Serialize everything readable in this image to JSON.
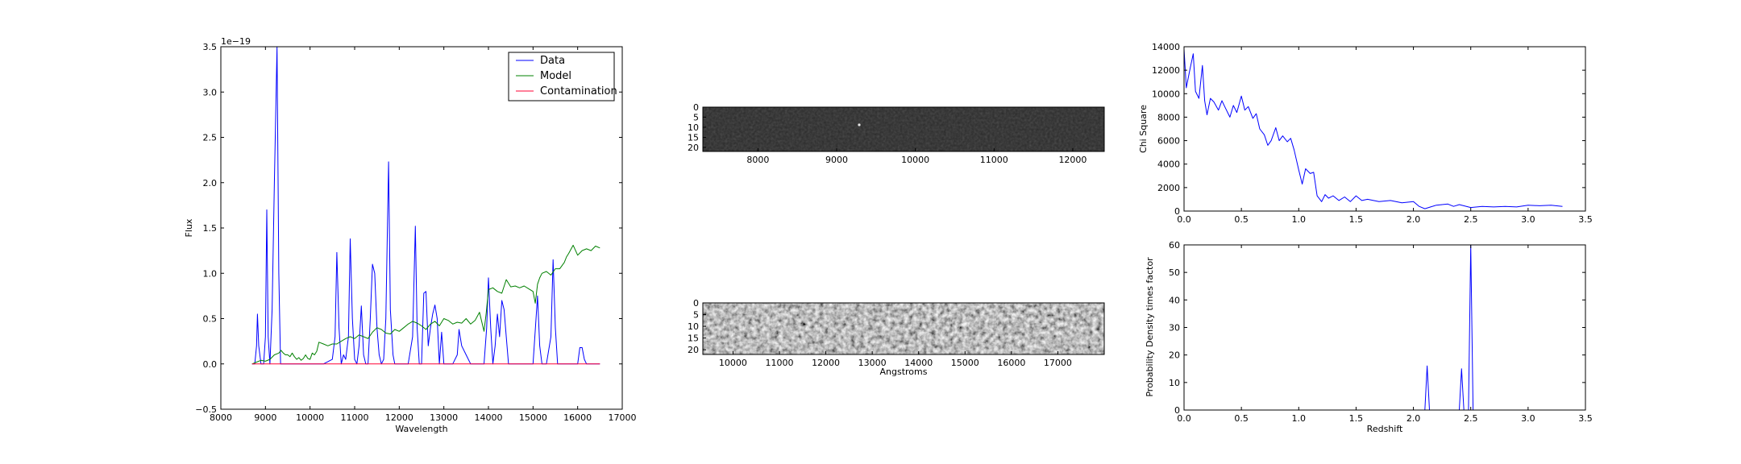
{
  "colors": {
    "data": "#0000ff",
    "model": "#008000",
    "contamination": "#ff0033",
    "axes": "#000000",
    "background": "#ffffff",
    "image_panel_1_base": "#2a2a2a",
    "image_panel_2_base": "#8a8a8a"
  },
  "chart_data": [
    {
      "type": "line",
      "xlabel": "Wavelength",
      "ylabel": "Flux",
      "offset_text": "1e−19",
      "xlim": [
        8000,
        17000
      ],
      "ylim": [
        -0.5,
        3.5
      ],
      "xticks": [
        "8000",
        "9000",
        "10000",
        "11000",
        "12000",
        "13000",
        "14000",
        "15000",
        "16000",
        "17000"
      ],
      "yticks": [
        "−0.5",
        "0.0",
        "0.5",
        "1.0",
        "1.5",
        "2.0",
        "2.5",
        "3.0",
        "3.5"
      ],
      "grid": false,
      "legend": {
        "placement": "top-right",
        "entries": [
          "Data",
          "Model",
          "Contamination"
        ]
      },
      "series": [
        {
          "name": "Data",
          "x": [
            8700,
            8760,
            8800,
            8820,
            8850,
            8900,
            8960,
            9000,
            9030,
            9060,
            9100,
            9150,
            9200,
            9260,
            9300,
            9340,
            9400,
            9500,
            9700,
            9900,
            10100,
            10300,
            10500,
            10560,
            10600,
            10650,
            10700,
            10750,
            10800,
            10860,
            10900,
            10950,
            11000,
            11050,
            11100,
            11150,
            11200,
            11250,
            11300,
            11350,
            11400,
            11450,
            11500,
            11550,
            11600,
            11650,
            11700,
            11760,
            11800,
            11860,
            11900,
            11950,
            12000,
            12100,
            12200,
            12300,
            12360,
            12400,
            12450,
            12500,
            12550,
            12600,
            12650,
            12700,
            12750,
            12800,
            12850,
            12900,
            12950,
            13000,
            13100,
            13200,
            13300,
            13340,
            13400,
            13500,
            13600,
            13700,
            13800,
            13900,
            13960,
            14000,
            14050,
            14100,
            14150,
            14200,
            14250,
            14300,
            14350,
            14400,
            14450,
            14500,
            14550,
            14600,
            14700,
            14800,
            14900,
            15000,
            15100,
            15150,
            15200,
            15300,
            15400,
            15450,
            15500,
            15550,
            15600,
            15700,
            15800,
            15900,
            16000,
            16050,
            16100,
            16150,
            16200,
            16300,
            16400,
            16500
          ],
          "y": [
            0,
            0,
            0.2,
            0.55,
            0.2,
            0,
            0,
            0.3,
            1.7,
            0.3,
            0,
            0.6,
            2.0,
            3.5,
            1.0,
            0,
            0,
            0,
            0,
            0,
            0,
            0,
            0.05,
            0.3,
            1.23,
            0.4,
            0,
            0.1,
            0.05,
            0.3,
            1.38,
            0.5,
            0.05,
            0,
            0.2,
            0.64,
            0.1,
            0,
            0,
            0.5,
            1.1,
            1.0,
            0.4,
            0.1,
            0,
            0.05,
            0.5,
            2.23,
            0.6,
            0.1,
            0,
            0,
            0,
            0,
            0,
            0.3,
            1.52,
            0.4,
            0,
            0,
            0.78,
            0.8,
            0.2,
            0.4,
            0.55,
            0.65,
            0.5,
            0,
            0.35,
            0,
            0,
            0,
            0.1,
            0.38,
            0.2,
            0.1,
            0,
            0,
            0,
            0,
            0.4,
            0.95,
            0.4,
            0,
            0.2,
            0.55,
            0.3,
            0.7,
            0.6,
            0.3,
            0,
            0,
            0,
            0,
            0,
            0,
            0,
            0,
            0.75,
            0.2,
            0,
            0,
            0.3,
            1.15,
            0.4,
            0,
            0,
            0,
            0,
            0,
            0,
            0.18,
            0.18,
            0.05,
            0,
            0,
            0,
            0
          ]
        },
        {
          "name": "Model",
          "x": [
            8700,
            8800,
            8900,
            9000,
            9100,
            9200,
            9300,
            9350,
            9400,
            9450,
            9500,
            9550,
            9600,
            9650,
            9700,
            9750,
            9800,
            9850,
            9900,
            9950,
            10000,
            10050,
            10100,
            10150,
            10200,
            10300,
            10400,
            10500,
            10600,
            10700,
            10800,
            10900,
            11000,
            11100,
            11200,
            11300,
            11400,
            11500,
            11600,
            11700,
            11800,
            11900,
            12000,
            12100,
            12200,
            12300,
            12400,
            12500,
            12600,
            12700,
            12800,
            12900,
            13000,
            13100,
            13200,
            13300,
            13400,
            13500,
            13600,
            13700,
            13800,
            13900,
            13950,
            14000,
            14100,
            14200,
            14300,
            14400,
            14500,
            14600,
            14700,
            14800,
            14900,
            15000,
            15050,
            15100,
            15150,
            15200,
            15300,
            15400,
            15500,
            15600,
            15700,
            15750,
            15800,
            15900,
            16000,
            16100,
            16200,
            16300,
            16400,
            16500
          ],
          "y": [
            0.0,
            0.02,
            0.04,
            0.03,
            0.05,
            0.1,
            0.12,
            0.15,
            0.12,
            0.1,
            0.1,
            0.08,
            0.12,
            0.08,
            0.05,
            0.07,
            0.04,
            0.06,
            0.1,
            0.06,
            0.05,
            0.12,
            0.1,
            0.14,
            0.24,
            0.22,
            0.2,
            0.22,
            0.22,
            0.25,
            0.28,
            0.3,
            0.28,
            0.32,
            0.3,
            0.28,
            0.35,
            0.4,
            0.38,
            0.34,
            0.33,
            0.38,
            0.36,
            0.4,
            0.44,
            0.47,
            0.45,
            0.42,
            0.38,
            0.44,
            0.47,
            0.42,
            0.5,
            0.48,
            0.44,
            0.46,
            0.45,
            0.5,
            0.44,
            0.48,
            0.57,
            0.36,
            0.56,
            0.82,
            0.84,
            0.8,
            0.78,
            0.93,
            0.85,
            0.86,
            0.84,
            0.86,
            0.83,
            0.8,
            0.67,
            0.88,
            0.95,
            1.0,
            1.02,
            0.98,
            1.05,
            1.05,
            1.12,
            1.18,
            1.22,
            1.31,
            1.2,
            1.25,
            1.27,
            1.25,
            1.3,
            1.28
          ]
        },
        {
          "name": "Contamination",
          "x": [
            8700,
            16500
          ],
          "y": [
            0,
            0
          ]
        }
      ]
    },
    {
      "type": "heatmap",
      "xticks": [
        "8000",
        "9000",
        "10000",
        "11000",
        "12000"
      ],
      "yticks": [
        "0",
        "5",
        "10",
        "15",
        "20"
      ],
      "xlim": [
        7300,
        12400
      ],
      "ylim": [
        22,
        0
      ]
    },
    {
      "type": "heatmap",
      "xlabel": "Angstroms",
      "xticks": [
        "10000",
        "11000",
        "12000",
        "13000",
        "14000",
        "15000",
        "16000",
        "17000"
      ],
      "yticks": [
        "0",
        "5",
        "10",
        "15",
        "20"
      ],
      "xlim": [
        9350,
        18000
      ],
      "ylim": [
        22,
        0
      ]
    },
    {
      "type": "line",
      "ylabel": "Chi Square",
      "xlim": [
        0.0,
        3.5
      ],
      "ylim": [
        0,
        14000
      ],
      "xticks": [
        "0.0",
        "0.5",
        "1.0",
        "1.5",
        "2.0",
        "2.5",
        "3.0",
        "3.5"
      ],
      "yticks": [
        "0",
        "2000",
        "4000",
        "6000",
        "8000",
        "10000",
        "12000",
        "14000"
      ],
      "grid": false,
      "series": [
        {
          "x": [
            0.0,
            0.02,
            0.05,
            0.08,
            0.1,
            0.13,
            0.16,
            0.18,
            0.2,
            0.23,
            0.26,
            0.3,
            0.33,
            0.36,
            0.4,
            0.43,
            0.46,
            0.5,
            0.53,
            0.56,
            0.6,
            0.63,
            0.66,
            0.7,
            0.73,
            0.76,
            0.8,
            0.83,
            0.86,
            0.9,
            0.93,
            0.96,
            1.0,
            1.03,
            1.06,
            1.1,
            1.13,
            1.16,
            1.2,
            1.23,
            1.26,
            1.3,
            1.35,
            1.4,
            1.45,
            1.5,
            1.55,
            1.6,
            1.7,
            1.8,
            1.9,
            2.0,
            2.05,
            2.1,
            2.15,
            2.2,
            2.3,
            2.35,
            2.4,
            2.5,
            2.6,
            2.7,
            2.8,
            2.9,
            3.0,
            3.1,
            3.2,
            3.3
          ],
          "y": [
            13800,
            10500,
            12000,
            13400,
            10200,
            9600,
            12400,
            9400,
            8200,
            9600,
            9300,
            8600,
            9400,
            8800,
            8000,
            9000,
            8400,
            9800,
            8600,
            8900,
            7900,
            8300,
            7000,
            6500,
            5600,
            6000,
            7100,
            6000,
            6400,
            5900,
            6200,
            5200,
            3500,
            2300,
            3600,
            3200,
            3300,
            1300,
            800,
            1400,
            1100,
            1300,
            900,
            1200,
            800,
            1300,
            900,
            1000,
            800,
            900,
            700,
            800,
            400,
            200,
            350,
            500,
            600,
            400,
            550,
            300,
            400,
            350,
            400,
            350,
            500,
            450,
            500,
            400
          ]
        }
      ]
    },
    {
      "type": "line",
      "xlabel": "Redshift",
      "ylabel": "Probability Density times factor",
      "xlim": [
        0.0,
        3.5
      ],
      "ylim": [
        0,
        60
      ],
      "xticks": [
        "0.0",
        "0.5",
        "1.0",
        "1.5",
        "2.0",
        "2.5",
        "3.0",
        "3.5"
      ],
      "yticks": [
        "0",
        "10",
        "20",
        "30",
        "40",
        "50",
        "60"
      ],
      "grid": false,
      "series": [
        {
          "x": [
            0.0,
            2.1,
            2.12,
            2.14,
            2.4,
            2.42,
            2.44,
            2.48,
            2.5,
            2.52,
            3.3
          ],
          "y": [
            0,
            0,
            16,
            0,
            0,
            15,
            0,
            0,
            60,
            0,
            0
          ]
        }
      ]
    }
  ]
}
